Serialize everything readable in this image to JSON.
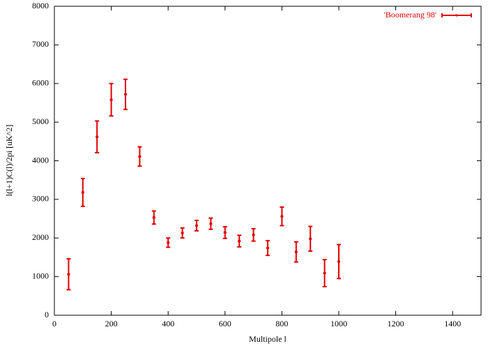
{
  "chart_data": {
    "type": "errorbar",
    "x_label": "Multipole l",
    "y_label": "l(l+1)C(l)/2pi [uK^2]",
    "x": [
      50,
      100,
      150,
      200,
      250,
      300,
      350,
      400,
      450,
      500,
      550,
      600,
      650,
      700,
      750,
      800,
      850,
      900,
      950,
      1000
    ],
    "series": [
      {
        "name": "'Boomerang 98'",
        "color": "#e00000",
        "values": [
          1060,
          3180,
          4620,
          5580,
          5720,
          4110,
          2530,
          1880,
          2130,
          2320,
          2370,
          2140,
          1920,
          2080,
          1740,
          2560,
          1640,
          1980,
          1090,
          1390
        ],
        "errors": [
          400,
          360,
          410,
          420,
          390,
          250,
          170,
          120,
          130,
          135,
          145,
          150,
          150,
          160,
          190,
          240,
          260,
          320,
          350,
          440
        ]
      }
    ],
    "xlim": [
      0,
      1500
    ],
    "xticks": [
      0,
      200,
      400,
      600,
      800,
      1000,
      1200,
      1400
    ],
    "ylim": [
      0,
      8000
    ],
    "yticks": [
      0,
      1000,
      2000,
      3000,
      4000,
      5000,
      6000,
      7000,
      8000
    ],
    "legend": "top-right"
  }
}
